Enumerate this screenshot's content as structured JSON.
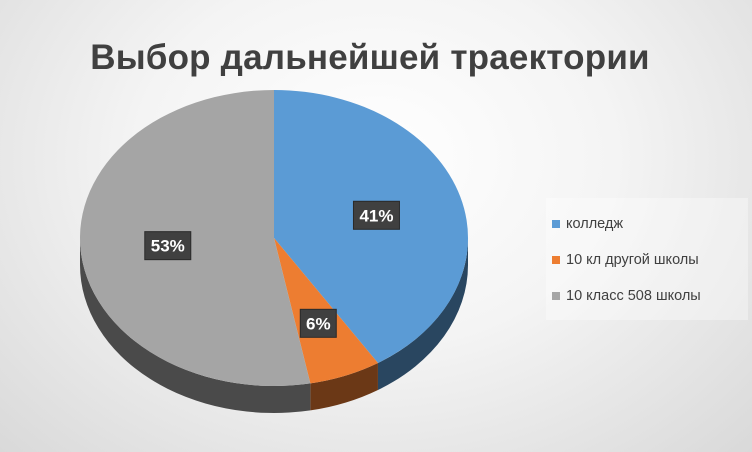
{
  "chart_data": {
    "type": "pie",
    "title": "Выбор дальнейшей траектории",
    "categories": [
      "колледж",
      "10 кл другой школы",
      "10 класс 508 школы"
    ],
    "values": [
      41,
      6,
      53
    ],
    "labels": [
      "41%",
      "6%",
      "53%"
    ],
    "colors": [
      "#5B9BD5",
      "#ED7D31",
      "#A5A5A5"
    ],
    "legend_position": "right",
    "style": "3d"
  }
}
